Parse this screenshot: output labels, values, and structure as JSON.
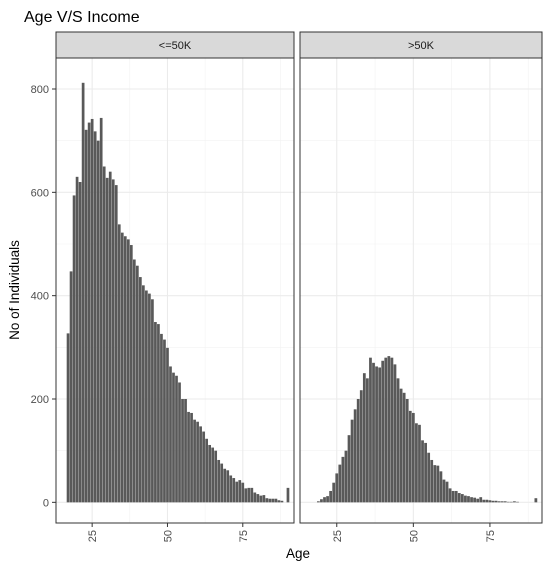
{
  "chart_data": {
    "type": "bar",
    "title": "Age V/S Income",
    "xlabel": "Age",
    "ylabel": "No of Individuals",
    "xlim": [
      13,
      92
    ],
    "ylim": [
      -40,
      860
    ],
    "x_ticks": [
      25,
      50,
      75
    ],
    "y_ticks": [
      0,
      200,
      400,
      600,
      800
    ],
    "grid": true,
    "theme": "bw",
    "bar_color": "#595959",
    "x_tick_rotation": -90,
    "facets": [
      {
        "label": "<=50K",
        "ages": [
          17,
          18,
          19,
          20,
          21,
          22,
          23,
          24,
          25,
          26,
          27,
          28,
          29,
          30,
          31,
          32,
          33,
          34,
          35,
          36,
          37,
          38,
          39,
          40,
          41,
          42,
          43,
          44,
          45,
          46,
          47,
          48,
          49,
          50,
          51,
          52,
          53,
          54,
          55,
          56,
          57,
          58,
          59,
          60,
          61,
          62,
          63,
          64,
          65,
          66,
          67,
          68,
          69,
          70,
          71,
          72,
          73,
          74,
          75,
          76,
          77,
          78,
          79,
          80,
          81,
          82,
          83,
          84,
          85,
          86,
          87,
          88,
          90
        ],
        "counts": [
          327,
          447,
          594,
          630,
          620,
          812,
          721,
          735,
          742,
          718,
          700,
          744,
          650,
          628,
          640,
          625,
          614,
          538,
          522,
          515,
          509,
          498,
          470,
          458,
          436,
          420,
          410,
          404,
          393,
          349,
          345,
          326,
          315,
          299,
          263,
          251,
          245,
          232,
          200,
          200,
          175,
          173,
          160,
          156,
          147,
          137,
          123,
          111,
          106,
          100,
          82,
          75,
          65,
          62,
          52,
          47,
          40,
          43,
          38,
          27,
          28,
          28,
          19,
          16,
          13,
          14,
          8,
          7,
          7,
          7,
          4,
          3,
          28
        ]
      },
      {
        "label": ">50K",
        "ages": [
          19,
          20,
          21,
          22,
          23,
          24,
          25,
          26,
          27,
          28,
          29,
          30,
          31,
          32,
          33,
          34,
          35,
          36,
          37,
          38,
          39,
          40,
          41,
          42,
          43,
          44,
          45,
          46,
          47,
          48,
          49,
          50,
          51,
          52,
          53,
          54,
          55,
          56,
          57,
          58,
          59,
          60,
          61,
          62,
          63,
          64,
          65,
          66,
          67,
          68,
          69,
          70,
          71,
          72,
          73,
          74,
          75,
          76,
          77,
          78,
          79,
          80,
          81,
          82,
          83,
          84,
          90
        ],
        "counts": [
          2,
          6,
          10,
          12,
          22,
          38,
          56,
          73,
          88,
          100,
          130,
          160,
          180,
          200,
          217,
          250,
          240,
          280,
          270,
          263,
          261,
          274,
          280,
          283,
          280,
          267,
          240,
          220,
          212,
          200,
          177,
          173,
          153,
          150,
          120,
          115,
          96,
          82,
          72,
          71,
          60,
          44,
          40,
          27,
          22,
          22,
          18,
          16,
          13,
          12,
          10,
          9,
          7,
          10,
          5,
          5,
          4,
          3,
          3,
          2,
          2,
          2,
          1,
          1,
          2,
          1,
          8
        ]
      }
    ]
  }
}
